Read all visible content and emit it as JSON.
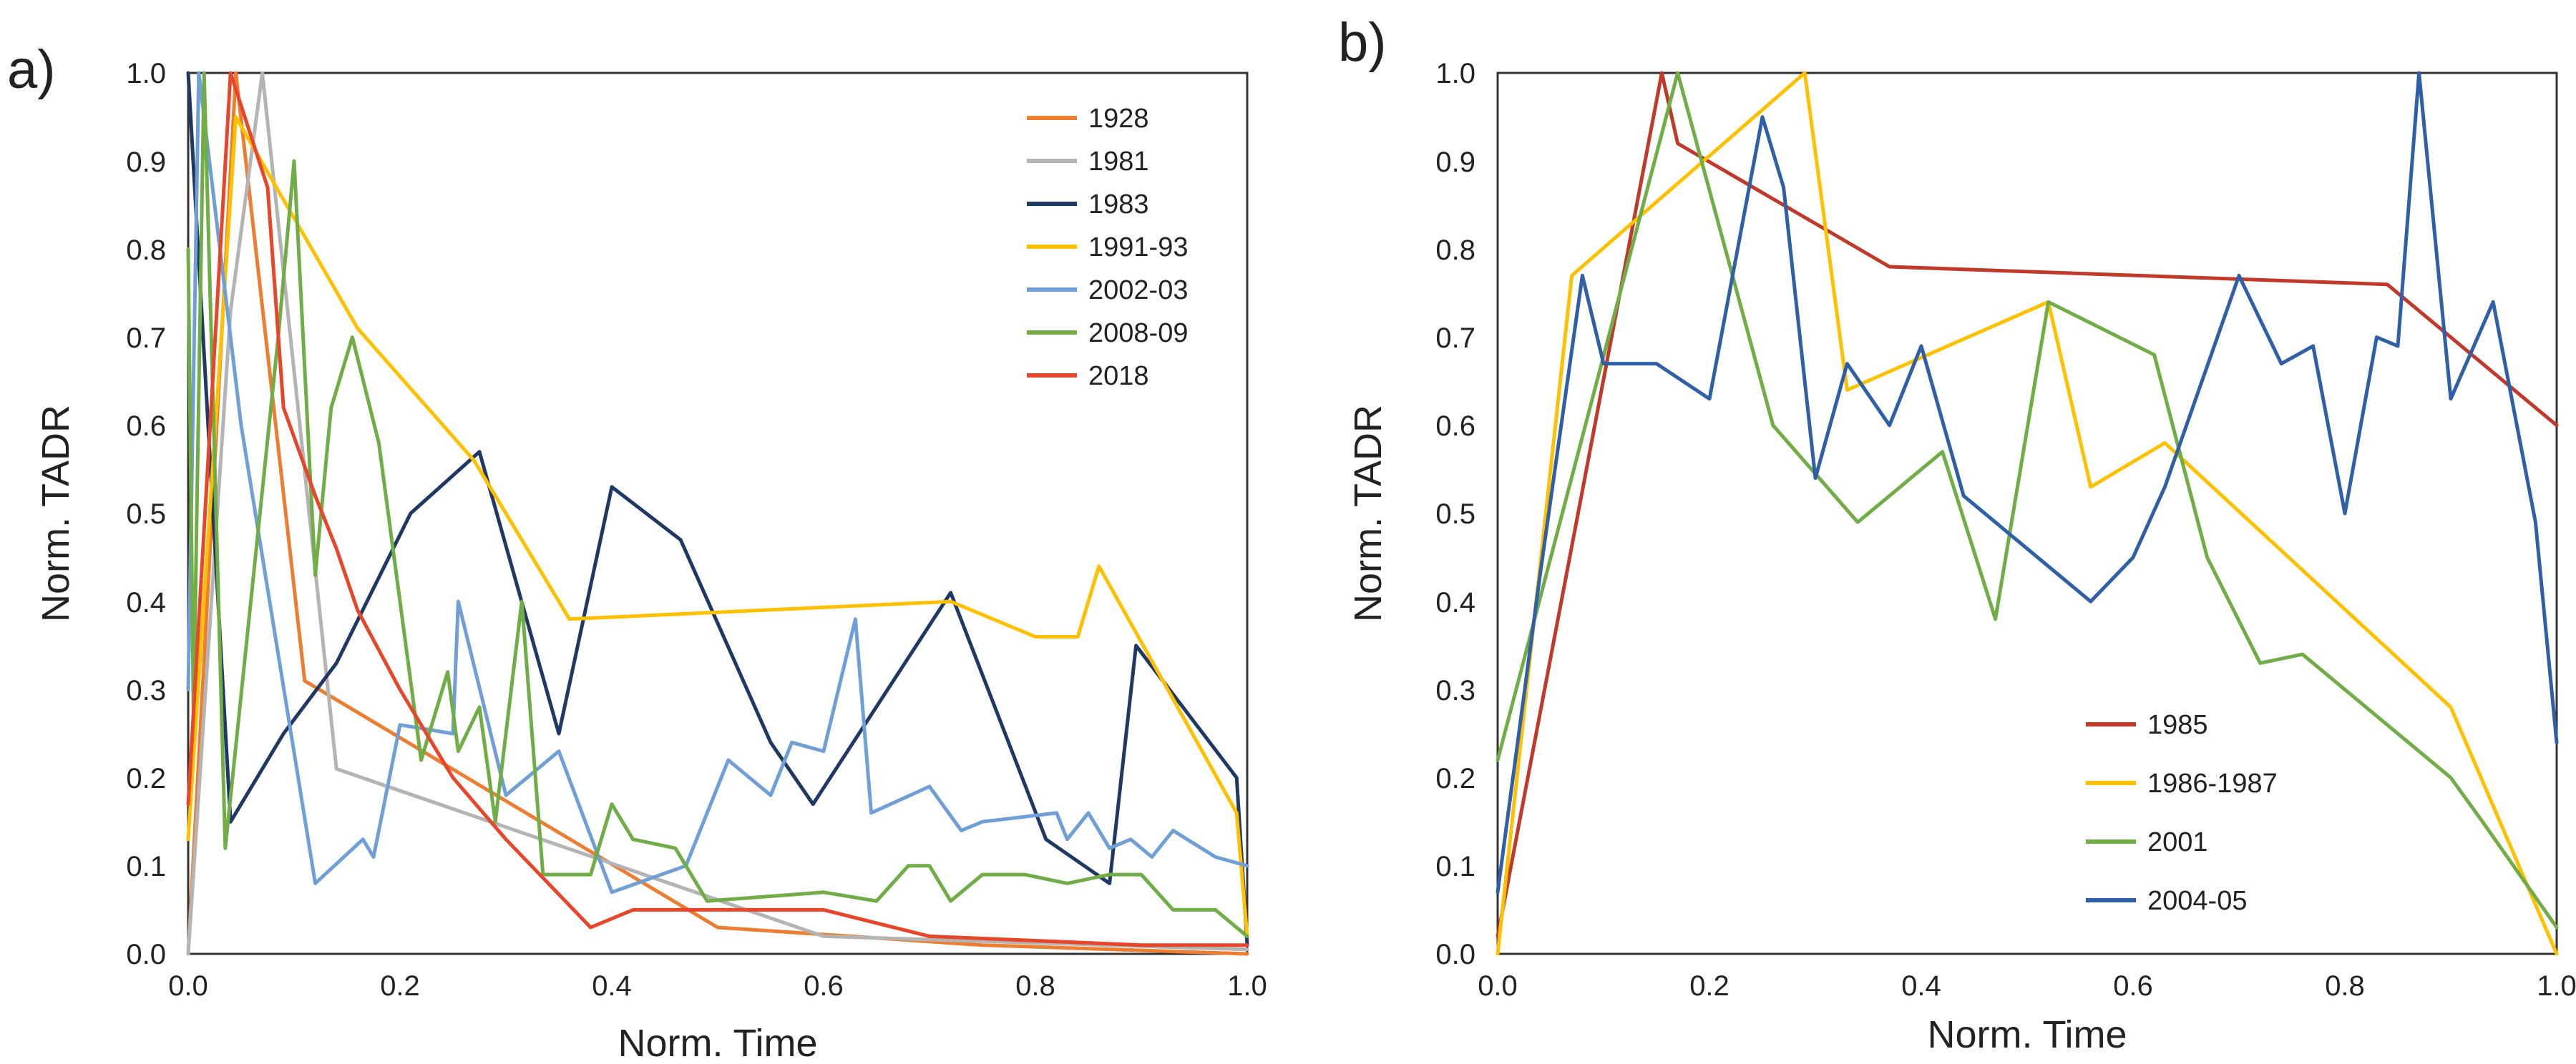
{
  "panels": [
    {
      "label": "a)"
    },
    {
      "label": "b)"
    }
  ],
  "chart_data": [
    {
      "type": "line",
      "xlabel": "Norm. Time",
      "ylabel": "Norm. TADR",
      "xlim": [
        0,
        1
      ],
      "ylim": [
        0,
        1
      ],
      "x_ticks": [
        "0.0",
        "0.2",
        "0.4",
        "0.6",
        "0.8",
        "1.0"
      ],
      "y_ticks": [
        "0.0",
        "0.1",
        "0.2",
        "0.3",
        "0.4",
        "0.5",
        "0.6",
        "0.7",
        "0.8",
        "0.9",
        "1.0"
      ],
      "grid": false,
      "legend_position": "top-right",
      "series": [
        {
          "name": "1928",
          "color": "#ed7d31",
          "points": [
            [
              0.0,
              0.0
            ],
            [
              0.045,
              1.0
            ],
            [
              0.11,
              0.31
            ],
            [
              0.5,
              0.03
            ],
            [
              0.75,
              0.01
            ],
            [
              1.0,
              0.0
            ]
          ]
        },
        {
          "name": "1981",
          "color": "#b4b4b4",
          "points": [
            [
              0.0,
              0.0
            ],
            [
              0.04,
              0.73
            ],
            [
              0.07,
              1.0
            ],
            [
              0.14,
              0.21
            ],
            [
              0.6,
              0.02
            ],
            [
              1.0,
              0.005
            ]
          ]
        },
        {
          "name": "1983",
          "color": "#203864",
          "points": [
            [
              0.0,
              1.0
            ],
            [
              0.04,
              0.15
            ],
            [
              0.09,
              0.25
            ],
            [
              0.14,
              0.33
            ],
            [
              0.21,
              0.5
            ],
            [
              0.275,
              0.57
            ],
            [
              0.35,
              0.25
            ],
            [
              0.4,
              0.53
            ],
            [
              0.465,
              0.47
            ],
            [
              0.55,
              0.24
            ],
            [
              0.59,
              0.17
            ],
            [
              0.72,
              0.41
            ],
            [
              0.81,
              0.13
            ],
            [
              0.87,
              0.08
            ],
            [
              0.895,
              0.35
            ],
            [
              0.99,
              0.2
            ],
            [
              1.0,
              0.01
            ]
          ]
        },
        {
          "name": "1991-93",
          "color": "#ffc000",
          "points": [
            [
              0.0,
              0.13
            ],
            [
              0.045,
              0.95
            ],
            [
              0.16,
              0.71
            ],
            [
              0.27,
              0.56
            ],
            [
              0.36,
              0.38
            ],
            [
              0.72,
              0.4
            ],
            [
              0.8,
              0.36
            ],
            [
              0.84,
              0.36
            ],
            [
              0.86,
              0.44
            ],
            [
              0.99,
              0.16
            ],
            [
              1.0,
              0.02
            ]
          ]
        },
        {
          "name": "2002-03",
          "color": "#6f9fd6",
          "points": [
            [
              0.0,
              0.3
            ],
            [
              0.01,
              1.0
            ],
            [
              0.05,
              0.6
            ],
            [
              0.12,
              0.08
            ],
            [
              0.165,
              0.13
            ],
            [
              0.175,
              0.11
            ],
            [
              0.2,
              0.26
            ],
            [
              0.25,
              0.25
            ],
            [
              0.255,
              0.4
            ],
            [
              0.3,
              0.18
            ],
            [
              0.35,
              0.23
            ],
            [
              0.4,
              0.07
            ],
            [
              0.47,
              0.1
            ],
            [
              0.51,
              0.22
            ],
            [
              0.55,
              0.18
            ],
            [
              0.57,
              0.24
            ],
            [
              0.6,
              0.23
            ],
            [
              0.63,
              0.38
            ],
            [
              0.645,
              0.16
            ],
            [
              0.7,
              0.19
            ],
            [
              0.73,
              0.14
            ],
            [
              0.75,
              0.15
            ],
            [
              0.82,
              0.16
            ],
            [
              0.83,
              0.13
            ],
            [
              0.85,
              0.16
            ],
            [
              0.87,
              0.12
            ],
            [
              0.89,
              0.13
            ],
            [
              0.91,
              0.11
            ],
            [
              0.93,
              0.14
            ],
            [
              0.97,
              0.11
            ],
            [
              1.0,
              0.1
            ]
          ]
        },
        {
          "name": "2008-09",
          "color": "#70ad47",
          "points": [
            [
              0.0,
              0.8
            ],
            [
              0.005,
              0.27
            ],
            [
              0.015,
              1.0
            ],
            [
              0.035,
              0.12
            ],
            [
              0.085,
              0.7
            ],
            [
              0.1,
              0.9
            ],
            [
              0.12,
              0.43
            ],
            [
              0.135,
              0.62
            ],
            [
              0.155,
              0.7
            ],
            [
              0.18,
              0.58
            ],
            [
              0.22,
              0.22
            ],
            [
              0.245,
              0.32
            ],
            [
              0.255,
              0.23
            ],
            [
              0.275,
              0.28
            ],
            [
              0.29,
              0.15
            ],
            [
              0.315,
              0.4
            ],
            [
              0.335,
              0.09
            ],
            [
              0.38,
              0.09
            ],
            [
              0.4,
              0.17
            ],
            [
              0.42,
              0.13
            ],
            [
              0.46,
              0.12
            ],
            [
              0.49,
              0.06
            ],
            [
              0.6,
              0.07
            ],
            [
              0.65,
              0.06
            ],
            [
              0.68,
              0.1
            ],
            [
              0.7,
              0.1
            ],
            [
              0.72,
              0.06
            ],
            [
              0.75,
              0.09
            ],
            [
              0.79,
              0.09
            ],
            [
              0.83,
              0.08
            ],
            [
              0.87,
              0.09
            ],
            [
              0.9,
              0.09
            ],
            [
              0.93,
              0.05
            ],
            [
              0.97,
              0.05
            ],
            [
              1.0,
              0.02
            ]
          ]
        },
        {
          "name": "2018",
          "color": "#e8462a",
          "points": [
            [
              0.0,
              0.17
            ],
            [
              0.04,
              1.0
            ],
            [
              0.075,
              0.87
            ],
            [
              0.09,
              0.62
            ],
            [
              0.12,
              0.52
            ],
            [
              0.14,
              0.46
            ],
            [
              0.16,
              0.39
            ],
            [
              0.2,
              0.3
            ],
            [
              0.25,
              0.2
            ],
            [
              0.3,
              0.13
            ],
            [
              0.38,
              0.03
            ],
            [
              0.42,
              0.05
            ],
            [
              0.6,
              0.05
            ],
            [
              0.7,
              0.02
            ],
            [
              0.9,
              0.01
            ],
            [
              1.0,
              0.01
            ]
          ]
        }
      ]
    },
    {
      "type": "line",
      "xlabel": "Norm. Time",
      "ylabel": "Norm. TADR",
      "xlim": [
        0,
        1
      ],
      "ylim": [
        0,
        1
      ],
      "x_ticks": [
        "0.0",
        "0.2",
        "0.4",
        "0.6",
        "0.8",
        "1.0"
      ],
      "y_ticks": [
        "0.0",
        "0.1",
        "0.2",
        "0.3",
        "0.4",
        "0.5",
        "0.6",
        "0.7",
        "0.8",
        "0.9",
        "1.0"
      ],
      "grid": false,
      "legend_position": "bottom-center",
      "series": [
        {
          "name": "1985",
          "color": "#c0392b",
          "points": [
            [
              0.0,
              0.02
            ],
            [
              0.155,
              1.0
            ],
            [
              0.17,
              0.92
            ],
            [
              0.37,
              0.78
            ],
            [
              0.84,
              0.76
            ],
            [
              1.0,
              0.6
            ]
          ]
        },
        {
          "name": "1986-1987",
          "color": "#ffc000",
          "points": [
            [
              0.0,
              0.0
            ],
            [
              0.07,
              0.77
            ],
            [
              0.29,
              1.0
            ],
            [
              0.33,
              0.64
            ],
            [
              0.52,
              0.74
            ],
            [
              0.56,
              0.53
            ],
            [
              0.63,
              0.58
            ],
            [
              0.9,
              0.28
            ],
            [
              1.0,
              0.0
            ]
          ]
        },
        {
          "name": "2001",
          "color": "#70ad47",
          "points": [
            [
              0.0,
              0.22
            ],
            [
              0.17,
              1.0
            ],
            [
              0.26,
              0.6
            ],
            [
              0.34,
              0.49
            ],
            [
              0.42,
              0.57
            ],
            [
              0.47,
              0.38
            ],
            [
              0.52,
              0.74
            ],
            [
              0.62,
              0.68
            ],
            [
              0.67,
              0.45
            ],
            [
              0.72,
              0.33
            ],
            [
              0.76,
              0.34
            ],
            [
              0.9,
              0.2
            ],
            [
              0.93,
              0.15
            ],
            [
              1.0,
              0.03
            ]
          ]
        },
        {
          "name": "2004-05",
          "color": "#2e5fa7",
          "points": [
            [
              0.0,
              0.07
            ],
            [
              0.04,
              0.43
            ],
            [
              0.08,
              0.77
            ],
            [
              0.1,
              0.67
            ],
            [
              0.15,
              0.67
            ],
            [
              0.2,
              0.63
            ],
            [
              0.25,
              0.95
            ],
            [
              0.27,
              0.87
            ],
            [
              0.3,
              0.54
            ],
            [
              0.33,
              0.67
            ],
            [
              0.37,
              0.6
            ],
            [
              0.4,
              0.69
            ],
            [
              0.44,
              0.52
            ],
            [
              0.5,
              0.46
            ],
            [
              0.56,
              0.4
            ],
            [
              0.6,
              0.45
            ],
            [
              0.63,
              0.53
            ],
            [
              0.7,
              0.77
            ],
            [
              0.74,
              0.67
            ],
            [
              0.77,
              0.69
            ],
            [
              0.8,
              0.5
            ],
            [
              0.83,
              0.7
            ],
            [
              0.85,
              0.69
            ],
            [
              0.87,
              1.0
            ],
            [
              0.9,
              0.63
            ],
            [
              0.94,
              0.74
            ],
            [
              0.98,
              0.49
            ],
            [
              1.0,
              0.24
            ]
          ]
        }
      ]
    }
  ]
}
